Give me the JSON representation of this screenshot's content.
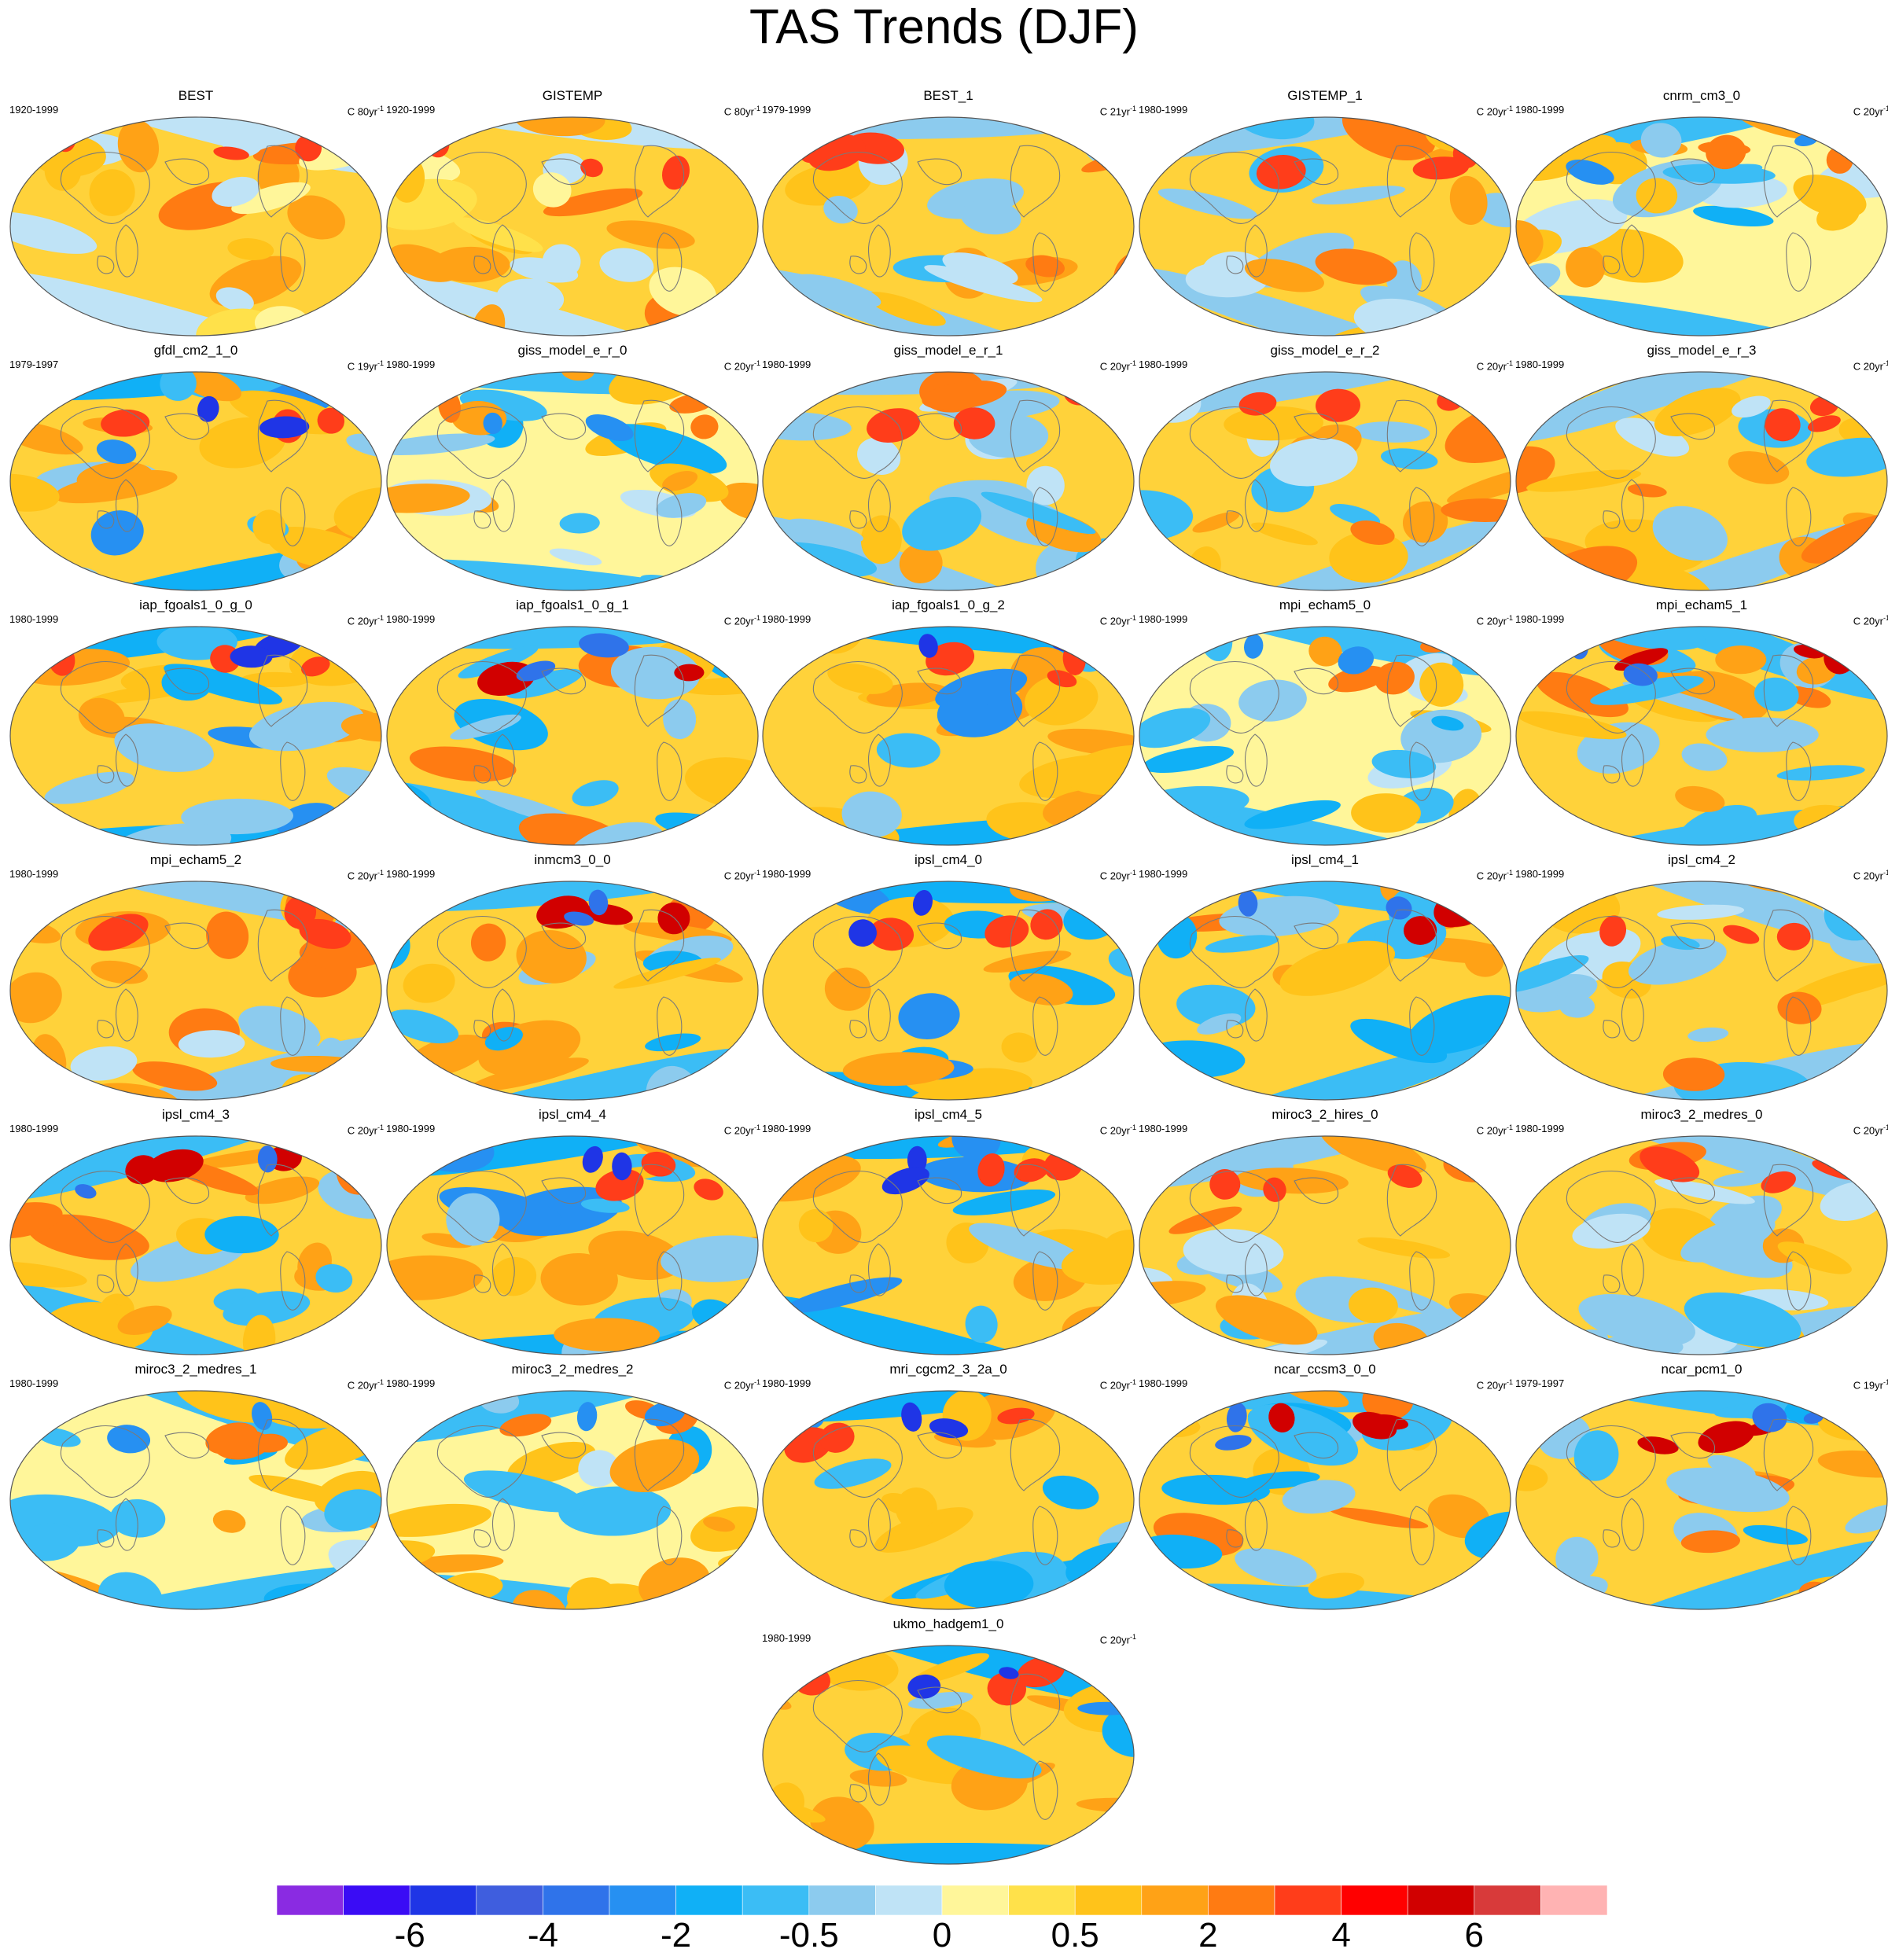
{
  "title": "TAS Trends (DJF)",
  "panels": [
    {
      "name": "BEST",
      "years": "1920-1999",
      "units": "C 80yr",
      "style": 0
    },
    {
      "name": "GISTEMP",
      "years": "1920-1999",
      "units": "C 80yr",
      "style": 0
    },
    {
      "name": "BEST_1",
      "years": "1979-1999",
      "units": "C 21yr",
      "style": 1
    },
    {
      "name": "GISTEMP_1",
      "years": "1980-1999",
      "units": "C 20yr",
      "style": 1
    },
    {
      "name": "cnrm_cm3_0",
      "years": "1980-1999",
      "units": "C 20yr",
      "style": 2
    },
    {
      "name": "gfdl_cm2_1_0",
      "years": "1979-1997",
      "units": "C 19yr",
      "style": 3
    },
    {
      "name": "giss_model_e_r_0",
      "years": "1980-1999",
      "units": "C 20yr",
      "style": 2
    },
    {
      "name": "giss_model_e_r_1",
      "years": "1980-1999",
      "units": "C 20yr",
      "style": 1
    },
    {
      "name": "giss_model_e_r_2",
      "years": "1980-1999",
      "units": "C 20yr",
      "style": 1
    },
    {
      "name": "giss_model_e_r_3",
      "years": "1980-1999",
      "units": "C 20yr",
      "style": 1
    },
    {
      "name": "iap_fgoals1_0_g_0",
      "years": "1980-1999",
      "units": "C 20yr",
      "style": 3
    },
    {
      "name": "iap_fgoals1_0_g_1",
      "years": "1980-1999",
      "units": "C 20yr",
      "style": 4
    },
    {
      "name": "iap_fgoals1_0_g_2",
      "years": "1980-1999",
      "units": "C 20yr",
      "style": 3
    },
    {
      "name": "mpi_echam5_0",
      "years": "1980-1999",
      "units": "C 20yr",
      "style": 2
    },
    {
      "name": "mpi_echam5_1",
      "years": "1980-1999",
      "units": "C 20yr",
      "style": 4
    },
    {
      "name": "mpi_echam5_2",
      "years": "1980-1999",
      "units": "C 20yr",
      "style": 1
    },
    {
      "name": "inmcm3_0_0",
      "years": "1980-1999",
      "units": "C 20yr",
      "style": 4
    },
    {
      "name": "ipsl_cm4_0",
      "years": "1980-1999",
      "units": "C 20yr",
      "style": 3
    },
    {
      "name": "ipsl_cm4_1",
      "years": "1980-1999",
      "units": "C 20yr",
      "style": 4
    },
    {
      "name": "ipsl_cm4_2",
      "years": "1980-1999",
      "units": "C 20yr",
      "style": 1
    },
    {
      "name": "ipsl_cm4_3",
      "years": "1980-1999",
      "units": "C 20yr",
      "style": 4
    },
    {
      "name": "ipsl_cm4_4",
      "years": "1980-1999",
      "units": "C 20yr",
      "style": 3
    },
    {
      "name": "ipsl_cm4_5",
      "years": "1980-1999",
      "units": "C 20yr",
      "style": 3
    },
    {
      "name": "miroc3_2_hires_0",
      "years": "1980-1999",
      "units": "C 20yr",
      "style": 1
    },
    {
      "name": "miroc3_2_medres_0",
      "years": "1980-1999",
      "units": "C 20yr",
      "style": 1
    },
    {
      "name": "miroc3_2_medres_1",
      "years": "1980-1999",
      "units": "C 20yr",
      "style": 2
    },
    {
      "name": "miroc3_2_medres_2",
      "years": "1980-1999",
      "units": "C 20yr",
      "style": 2
    },
    {
      "name": "mri_cgcm2_3_2a_0",
      "years": "1980-1999",
      "units": "C 20yr",
      "style": 3
    },
    {
      "name": "ncar_ccsm3_0_0",
      "years": "1980-1999",
      "units": "C 20yr",
      "style": 4
    },
    {
      "name": "ncar_pcm1_0",
      "years": "1979-1997",
      "units": "C 19yr",
      "style": 4
    },
    {
      "name": "ukmo_hadgem1_0",
      "years": "1980-1999",
      "units": "C 20yr",
      "style": 3
    }
  ],
  "units_superscript": "-1",
  "colorbar": {
    "colors": [
      "#8a2be2",
      "#3a0cf5",
      "#1f35e6",
      "#3f5ede",
      "#2f73ea",
      "#2690f2",
      "#10b0f6",
      "#3bbdf5",
      "#8ccbee",
      "#bfe3f6",
      "#fff69a",
      "#ffe14a",
      "#ffc31a",
      "#ffa216",
      "#ff7b12",
      "#ff3d1a",
      "#ff0000",
      "#d10000",
      "#d83a3a",
      "#ffb3b3"
    ],
    "labels": [
      "-6",
      "-4",
      "-2",
      "-0.5",
      "0",
      "0.5",
      "2",
      "4",
      "6"
    ]
  }
}
